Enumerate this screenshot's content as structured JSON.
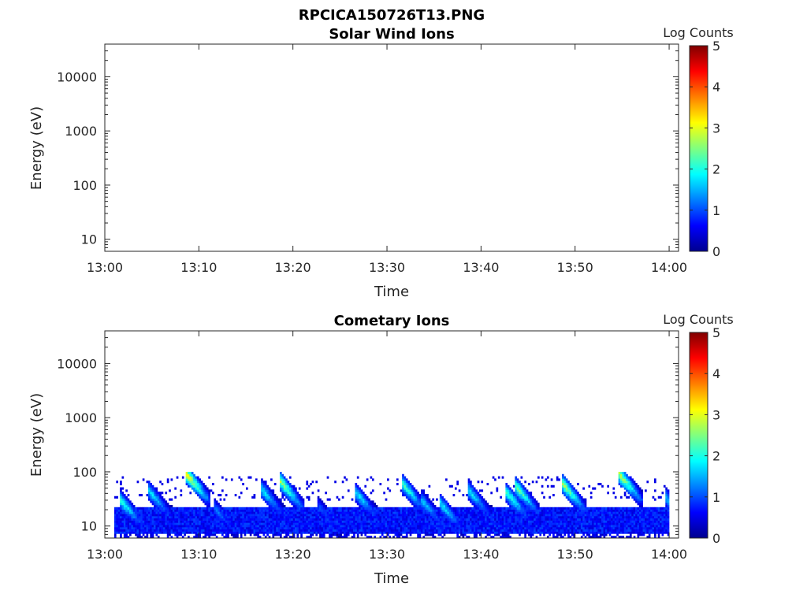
{
  "figure_title": "RPCICA150726T13.PNG",
  "chart_data": [
    {
      "type": "heatmap",
      "title": "Solar Wind Ions",
      "xlabel": "Time",
      "ylabel": "Energy (eV)",
      "x_ticks": [
        "13:00",
        "13:10",
        "13:20",
        "13:30",
        "13:40",
        "13:50",
        "14:00"
      ],
      "xlim": [
        "13:00",
        "14:01"
      ],
      "y_scale": "log",
      "y_ticks": [
        "10",
        "100",
        "1000",
        "10000"
      ],
      "ylim": [
        6,
        40000
      ],
      "colorbar": {
        "label": "Log Counts",
        "range": [
          0,
          5
        ],
        "ticks": [
          "0",
          "1",
          "2",
          "3",
          "4",
          "5"
        ],
        "colormap": "jet"
      },
      "events": []
    },
    {
      "type": "heatmap",
      "title": "Cometary Ions",
      "xlabel": "Time",
      "ylabel": "Energy (eV)",
      "x_ticks": [
        "13:00",
        "13:10",
        "13:20",
        "13:30",
        "13:40",
        "13:50",
        "14:00"
      ],
      "xlim": [
        "13:00",
        "14:01"
      ],
      "y_scale": "log",
      "y_ticks": [
        "10",
        "100",
        "1000",
        "10000"
      ],
      "ylim": [
        6,
        40000
      ],
      "colorbar": {
        "label": "Log Counts",
        "range": [
          0,
          5
        ],
        "ticks": [
          "0",
          "1",
          "2",
          "3",
          "4",
          "5"
        ],
        "colormap": "jet"
      },
      "background": {
        "start": "13:01",
        "end": "14:00",
        "energy_min": 7,
        "energy_max": 22,
        "level": 0.7
      },
      "sparse_band": {
        "energy_min": 30,
        "energy_max": 80
      },
      "events": [
        {
          "time": "13:02",
          "peak_energy": 25,
          "level": 2.0
        },
        {
          "time": "13:05",
          "peak_energy": 38,
          "level": 1.8
        },
        {
          "time": "13:09",
          "peak_energy": 75,
          "level": 3.0
        },
        {
          "time": "13:12",
          "peak_energy": 18,
          "level": 1.2
        },
        {
          "time": "13:17",
          "peak_energy": 40,
          "level": 1.8
        },
        {
          "time": "13:19",
          "peak_energy": 55,
          "level": 2.6
        },
        {
          "time": "13:23",
          "peak_energy": 20,
          "level": 1.0
        },
        {
          "time": "13:27",
          "peak_energy": 35,
          "level": 1.8
        },
        {
          "time": "13:32",
          "peak_energy": 50,
          "level": 2.2
        },
        {
          "time": "13:34",
          "peak_energy": 25,
          "level": 1.6
        },
        {
          "time": "13:36",
          "peak_energy": 22,
          "level": 1.8
        },
        {
          "time": "13:39",
          "peak_energy": 38,
          "level": 1.8
        },
        {
          "time": "13:43",
          "peak_energy": 35,
          "level": 2.2
        },
        {
          "time": "13:44",
          "peak_energy": 45,
          "level": 2.4
        },
        {
          "time": "13:49",
          "peak_energy": 50,
          "level": 2.6
        },
        {
          "time": "13:55",
          "peak_energy": 75,
          "level": 2.8
        },
        {
          "time": "14:00",
          "peak_energy": 28,
          "level": 1.6
        }
      ]
    }
  ]
}
